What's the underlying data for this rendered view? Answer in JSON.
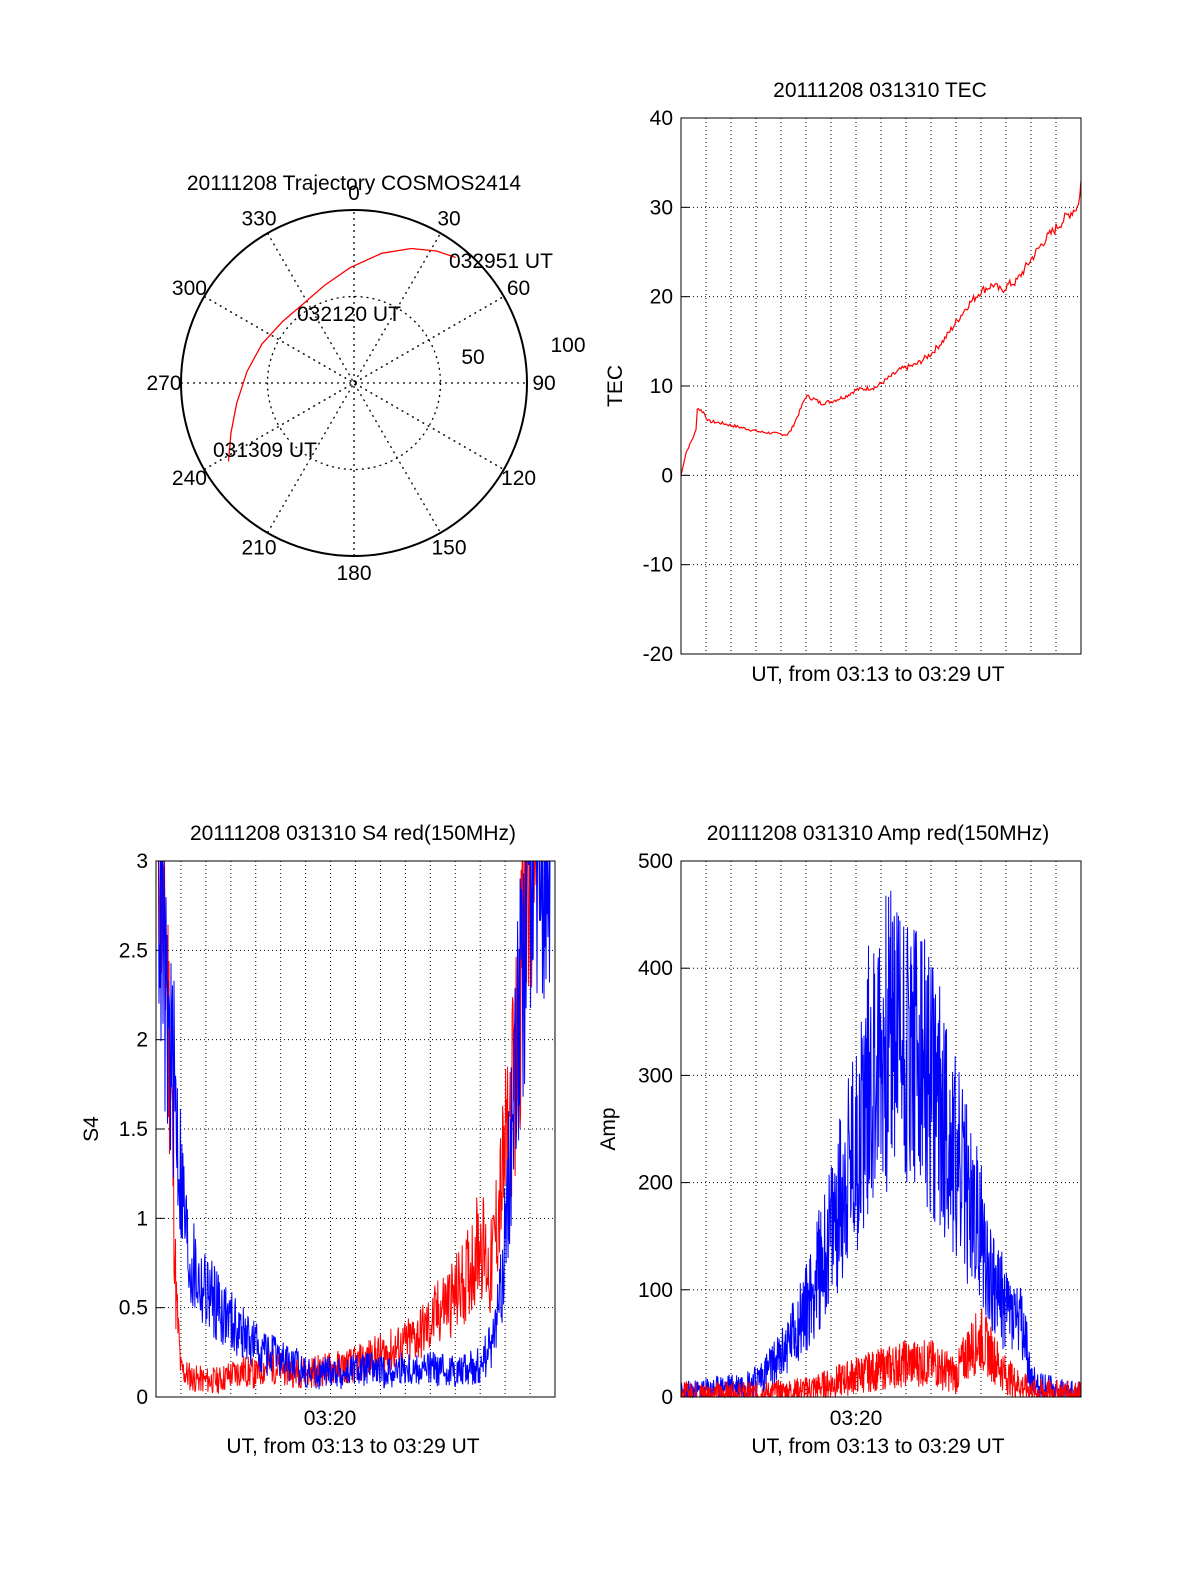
{
  "chart_data": [
    {
      "type": "polar",
      "title": "20111208 Trajectory COSMOS2414",
      "azimuth_labels": [
        "0",
        "30",
        "60",
        "90",
        "120",
        "150",
        "180",
        "210",
        "240",
        "270",
        "300",
        "330"
      ],
      "radial_labels": [
        "50",
        "100"
      ],
      "series": [
        {
          "color": "#ff0000",
          "points": [
            {
              "az": 238,
              "el": 13
            },
            {
              "az": 248,
              "el": 21
            },
            {
              "az": 260,
              "el": 28
            },
            {
              "az": 276,
              "el": 34
            },
            {
              "az": 293,
              "el": 38
            },
            {
              "az": 311,
              "el": 41
            },
            {
              "az": 328,
              "el": 41
            },
            {
              "az": 343,
              "el": 37
            },
            {
              "az": 358,
              "el": 30
            },
            {
              "az": 12,
              "el": 21
            },
            {
              "az": 23,
              "el": 14
            },
            {
              "az": 32,
              "el": 9
            },
            {
              "az": 38,
              "el": 6.5
            },
            {
              "az": 39,
              "el": 6
            }
          ]
        }
      ],
      "annotations": [
        "031309 UT",
        "032120 UT",
        "032951 UT"
      ]
    },
    {
      "type": "line",
      "title": "20111208 031310 TEC",
      "xlabel": "UT, from 03:13 to 03:29 UT",
      "ylabel": "TEC",
      "xlim": [
        0,
        16
      ],
      "ylim": [
        -20,
        40
      ],
      "yticks": [
        "40",
        "30",
        "20",
        "10",
        "0",
        "-10",
        "-20"
      ],
      "grid": true,
      "series": [
        {
          "color": "#ff0000",
          "x": [
            0,
            0.2,
            0.45,
            0.6,
            0.65,
            0.9,
            1.1,
            1.6,
            2.4,
            3.2,
            4.25,
            4.4,
            4.7,
            5,
            5.3,
            5.6,
            6,
            6.6,
            7,
            7.3,
            7.8,
            8.3,
            8.8,
            9.4,
            10,
            10.5,
            11,
            11.5,
            12,
            12.5,
            12.8,
            13.1,
            13.4,
            14,
            14.5,
            15,
            15.5,
            15.9,
            16
          ],
          "y": [
            0,
            2.5,
            4,
            5,
            7.5,
            7,
            6,
            5.8,
            5.3,
            4.8,
            4.5,
            5,
            6.8,
            8.8,
            8.5,
            8,
            8.2,
            8.8,
            9.5,
            9.6,
            9.8,
            10.8,
            11.8,
            12.3,
            13.5,
            15,
            17,
            19,
            20.5,
            21.2,
            20.5,
            21.2,
            21.5,
            24,
            26,
            27.5,
            29,
            30,
            33
          ]
        }
      ]
    },
    {
      "type": "line",
      "title": "20111208 031310 S4 red(150MHz)",
      "xlabel": "UT, from 03:13 to 03:29 UT",
      "ylabel": "S4",
      "xtick_label": "03:20",
      "yticks": [
        "3",
        "2.5",
        "2",
        "1.5",
        "1",
        "0.5",
        "0"
      ],
      "ylim": [
        0,
        3
      ],
      "grid": true,
      "series": [
        {
          "color": "#ff0000",
          "x": [
            0.1,
            0.4,
            0.6,
            0.8,
            1,
            1.5,
            2,
            2.5,
            3,
            3.5,
            4,
            4.5,
            5,
            5.5,
            6,
            6.5,
            7,
            7.5,
            8,
            8.5,
            9,
            9.5,
            10,
            10.5,
            11,
            11.5,
            12,
            12.5,
            13,
            13.4,
            13.8,
            14.2,
            14.5,
            14.8,
            15.1,
            15.4
          ],
          "y": [
            3,
            2.2,
            1.6,
            0.5,
            0.12,
            0.08,
            0.07,
            0.07,
            0.1,
            0.12,
            0.1,
            0.15,
            0.13,
            0.12,
            0.11,
            0.12,
            0.13,
            0.14,
            0.15,
            0.18,
            0.2,
            0.22,
            0.25,
            0.3,
            0.35,
            0.45,
            0.5,
            0.6,
            0.8,
            0.6,
            1,
            1.4,
            1.8,
            2.5,
            3,
            3
          ]
        },
        {
          "color": "#0000ff",
          "x": [
            0.1,
            0.4,
            0.7,
            1,
            1.3,
            1.8,
            2.2,
            2.8,
            3.5,
            4,
            4.5,
            5,
            5.5,
            6,
            6.5,
            7,
            7.5,
            8,
            8.5,
            9,
            9.5,
            10,
            10.5,
            11,
            11.5,
            12,
            12.5,
            13,
            13.5,
            13.9,
            14.2,
            14.6,
            15,
            15.4,
            15.8
          ],
          "y": [
            2.8,
            1.9,
            1.6,
            1.1,
            0.7,
            0.55,
            0.5,
            0.4,
            0.3,
            0.25,
            0.2,
            0.18,
            0.15,
            0.12,
            0.1,
            0.12,
            0.1,
            0.12,
            0.13,
            0.11,
            0.12,
            0.13,
            0.12,
            0.13,
            0.12,
            0.12,
            0.13,
            0.15,
            0.25,
            0.6,
            1.2,
            2,
            2.8,
            3,
            3
          ]
        }
      ]
    },
    {
      "type": "line",
      "title": "20111208 031310 Amp red(150MHz)",
      "xlabel": "UT, from 03:13 to 03:29 UT",
      "ylabel": "Amp",
      "xtick_label": "03:20",
      "yticks": [
        "500",
        "400",
        "300",
        "200",
        "100",
        "0"
      ],
      "ylim": [
        0,
        500
      ],
      "grid": true,
      "series": [
        {
          "color": "#0000ff",
          "x": [
            0,
            1,
            2,
            3,
            3.5,
            4,
            4.5,
            5,
            5.5,
            6,
            6.5,
            7,
            7.5,
            8,
            8.5,
            9,
            9.5,
            10,
            10.5,
            11,
            11.5,
            12,
            12.5,
            13,
            13.5,
            13.8,
            14,
            15,
            16
          ],
          "y": [
            0,
            2,
            5,
            10,
            20,
            30,
            50,
            70,
            100,
            130,
            170,
            200,
            260,
            280,
            300,
            290,
            270,
            250,
            230,
            190,
            160,
            130,
            90,
            70,
            60,
            40,
            10,
            2,
            0
          ]
        },
        {
          "color": "#ff0000",
          "x": [
            0,
            3,
            4,
            5,
            6,
            7,
            8,
            9,
            10,
            10.5,
            11,
            11.5,
            12,
            12.5,
            13,
            13.5,
            14,
            16
          ],
          "y": [
            0,
            0,
            1,
            3,
            8,
            15,
            20,
            25,
            25,
            20,
            15,
            35,
            45,
            30,
            15,
            8,
            2,
            0
          ]
        }
      ]
    }
  ]
}
